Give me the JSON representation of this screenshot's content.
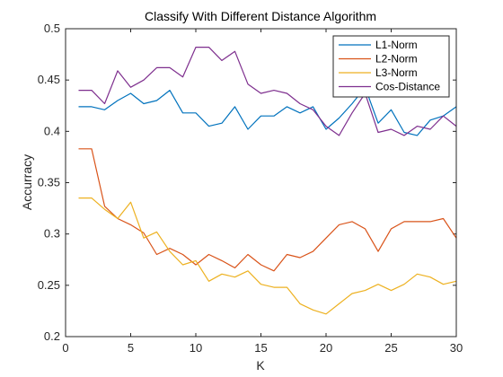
{
  "chart_data": {
    "type": "line",
    "title": "Classify With Different Distance Algorithm",
    "xlabel": "K",
    "ylabel": "Accurracy",
    "xlim": [
      0,
      30
    ],
    "ylim": [
      0.2,
      0.5
    ],
    "xticks": [
      0,
      5,
      10,
      15,
      20,
      25,
      30
    ],
    "yticks": [
      0.2,
      0.25,
      0.3,
      0.35,
      0.4,
      0.45,
      0.5
    ],
    "xtick_labels": [
      "0",
      "5",
      "10",
      "15",
      "20",
      "25",
      "30"
    ],
    "ytick_labels": [
      "0.2",
      "0.25",
      "0.3",
      "0.35",
      "0.4",
      "0.45",
      "0.5"
    ],
    "grid": false,
    "legend_position": "top-right",
    "x": [
      1,
      2,
      3,
      4,
      5,
      6,
      7,
      8,
      9,
      10,
      11,
      12,
      13,
      14,
      15,
      16,
      17,
      18,
      19,
      20,
      21,
      22,
      23,
      24,
      25,
      26,
      27,
      28,
      29,
      30
    ],
    "series": [
      {
        "name": "L1-Norm",
        "color": "#0072BD",
        "values": [
          0.424,
          0.424,
          0.421,
          0.43,
          0.437,
          0.427,
          0.43,
          0.44,
          0.418,
          0.418,
          0.405,
          0.408,
          0.424,
          0.402,
          0.415,
          0.415,
          0.424,
          0.418,
          0.424,
          0.402,
          0.413,
          0.427,
          0.443,
          0.408,
          0.421,
          0.399,
          0.396,
          0.411,
          0.415,
          0.424
        ]
      },
      {
        "name": "L2-Norm",
        "color": "#D95319",
        "values": [
          0.383,
          0.383,
          0.327,
          0.315,
          0.309,
          0.301,
          0.28,
          0.286,
          0.28,
          0.27,
          0.28,
          0.274,
          0.267,
          0.28,
          0.27,
          0.264,
          0.28,
          0.277,
          0.283,
          0.296,
          0.309,
          0.312,
          0.305,
          0.283,
          0.305,
          0.312,
          0.312,
          0.312,
          0.315,
          0.296
        ]
      },
      {
        "name": "L3-Norm",
        "color": "#EDB120",
        "values": [
          0.335,
          0.335,
          0.324,
          0.315,
          0.331,
          0.296,
          0.302,
          0.283,
          0.27,
          0.274,
          0.254,
          0.261,
          0.258,
          0.264,
          0.251,
          0.248,
          0.248,
          0.232,
          0.226,
          0.222,
          0.232,
          0.242,
          0.245,
          0.251,
          0.245,
          0.251,
          0.261,
          0.258,
          0.251,
          0.254
        ]
      },
      {
        "name": "Cos-Distance",
        "color": "#7E2F8E",
        "values": [
          0.44,
          0.44,
          0.427,
          0.459,
          0.443,
          0.45,
          0.462,
          0.462,
          0.453,
          0.482,
          0.482,
          0.469,
          0.478,
          0.446,
          0.437,
          0.44,
          0.437,
          0.427,
          0.421,
          0.405,
          0.396,
          0.418,
          0.437,
          0.399,
          0.402,
          0.396,
          0.405,
          0.402,
          0.415,
          0.405
        ]
      }
    ]
  }
}
